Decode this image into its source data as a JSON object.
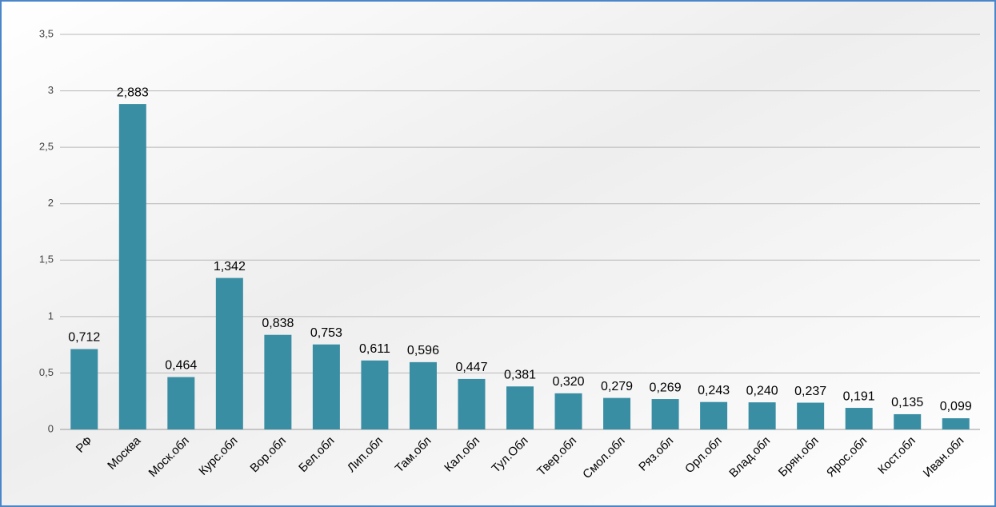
{
  "chart_data": {
    "type": "bar",
    "categories": [
      "РФ",
      "Москва",
      "Моск.обл",
      "Курс.обл",
      "Вор.обл",
      "Бел.обл",
      "Лип.обл",
      "Там.обл",
      "Кал.обл",
      "Тул.Обл",
      "Твер.обл",
      "Смол.обл",
      "Ряз.обл",
      "Орл.обл",
      "Влад.обл",
      "Брян.обл",
      "Ярос.обл",
      "Кост.обл",
      "Иван.обл"
    ],
    "values": [
      0.712,
      2.883,
      0.464,
      1.342,
      0.838,
      0.753,
      0.611,
      0.596,
      0.447,
      0.381,
      0.32,
      0.279,
      0.269,
      0.243,
      0.24,
      0.237,
      0.191,
      0.135,
      0.099
    ],
    "value_labels": [
      "0,712",
      "2,883",
      "0,464",
      "1,342",
      "0,838",
      "0,753",
      "0,611",
      "0,596",
      "0,447",
      "0,381",
      "0,320",
      "0,279",
      "0,269",
      "0,243",
      "0,240",
      "0,237",
      "0,191",
      "0,135",
      "0,099"
    ],
    "color": "#3a8ea4",
    "ylim": [
      0,
      3.5
    ],
    "yticks": [
      0,
      {
        "value": 0.5,
        "label": "0,5"
      },
      1,
      {
        "value": 1.5,
        "label": "1,5"
      },
      2,
      {
        "value": 2.5,
        "label": "2,5"
      },
      3,
      {
        "value": 3.5,
        "label": "3,5"
      }
    ],
    "grid": true
  }
}
